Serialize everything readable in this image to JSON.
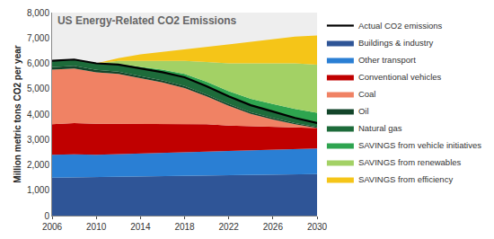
{
  "chart_data": {
    "type": "area",
    "title": "US Energy-Related CO2 Emissions",
    "y_label": "Million metric tons CO2 per year",
    "stacked": true,
    "grid": false,
    "legend": "right",
    "x": [
      2006,
      2008,
      2010,
      2012,
      2014,
      2016,
      2018,
      2020,
      2022,
      2024,
      2026,
      2028,
      2030
    ],
    "xlim": [
      2006,
      2030
    ],
    "xticks": [
      2006,
      2010,
      2014,
      2018,
      2022,
      2026,
      2030
    ],
    "ylim": [
      0,
      8000
    ],
    "yticks": [
      0,
      {
        "value": 1000,
        "label": "1,000"
      },
      {
        "value": 2000,
        "label": "2,000"
      },
      {
        "value": 3000,
        "label": "3,000"
      },
      {
        "value": 4000,
        "label": "4,000"
      },
      {
        "value": 5000,
        "label": "5,000"
      },
      {
        "value": 6000,
        "label": "6,000"
      },
      {
        "value": 7000,
        "label": "7,000"
      },
      {
        "value": 8000,
        "label": "8,000"
      }
    ],
    "series": [
      {
        "name": "SAVINGS from efficiency",
        "color": "#f5c518",
        "values": [
          0,
          0,
          0,
          100,
          250,
          350,
          450,
          600,
          750,
          850,
          950,
          1050,
          1150
        ]
      },
      {
        "name": "SAVINGS from renewables",
        "color": "#a3d165",
        "values": [
          0,
          0,
          0,
          120,
          240,
          350,
          520,
          780,
          1100,
          1400,
          1600,
          1800,
          1900
        ]
      },
      {
        "name": "SAVINGS from vehicle initiatives",
        "color": "#2ea44f",
        "values": [
          0,
          0,
          0,
          30,
          60,
          100,
          130,
          170,
          200,
          250,
          300,
          350,
          400
        ]
      },
      {
        "name": "Natural gas",
        "color": "#1d6b3a",
        "values": [
          250,
          250,
          260,
          280,
          300,
          320,
          340,
          330,
          300,
          280,
          250,
          200,
          150
        ]
      },
      {
        "name": "Oil",
        "color": "#13452a",
        "values": [
          100,
          100,
          90,
          90,
          80,
          80,
          80,
          70,
          70,
          60,
          60,
          50,
          50
        ]
      },
      {
        "name": "Coal",
        "color": "#f08264",
        "values": [
          2150,
          2150,
          2030,
          1960,
          1820,
          1630,
          1410,
          1100,
          780,
          490,
          290,
          120,
          0
        ]
      },
      {
        "name": "Conventional vehicles",
        "color": "#c00000",
        "values": [
          1200,
          1230,
          1220,
          1200,
          1150,
          1140,
          1120,
          1080,
          1000,
          950,
          900,
          850,
          800
        ]
      },
      {
        "name": "Other transport",
        "color": "#2a7fd4",
        "values": [
          900,
          910,
          880,
          890,
          900,
          920,
          920,
          930,
          950,
          960,
          980,
          1000,
          1010
        ]
      },
      {
        "name": "Buildings & industry",
        "color": "#2f5597",
        "values": [
          1500,
          1510,
          1520,
          1530,
          1550,
          1560,
          1580,
          1590,
          1600,
          1610,
          1620,
          1630,
          1640
        ]
      },
      {
        "name": "Actual CO2 emissions",
        "color": "#000000",
        "type": "line",
        "values": [
          6100,
          6150,
          6000,
          5950,
          5800,
          5650,
          5450,
          5100,
          4700,
          4350,
          4100,
          3850,
          3650
        ]
      }
    ]
  }
}
